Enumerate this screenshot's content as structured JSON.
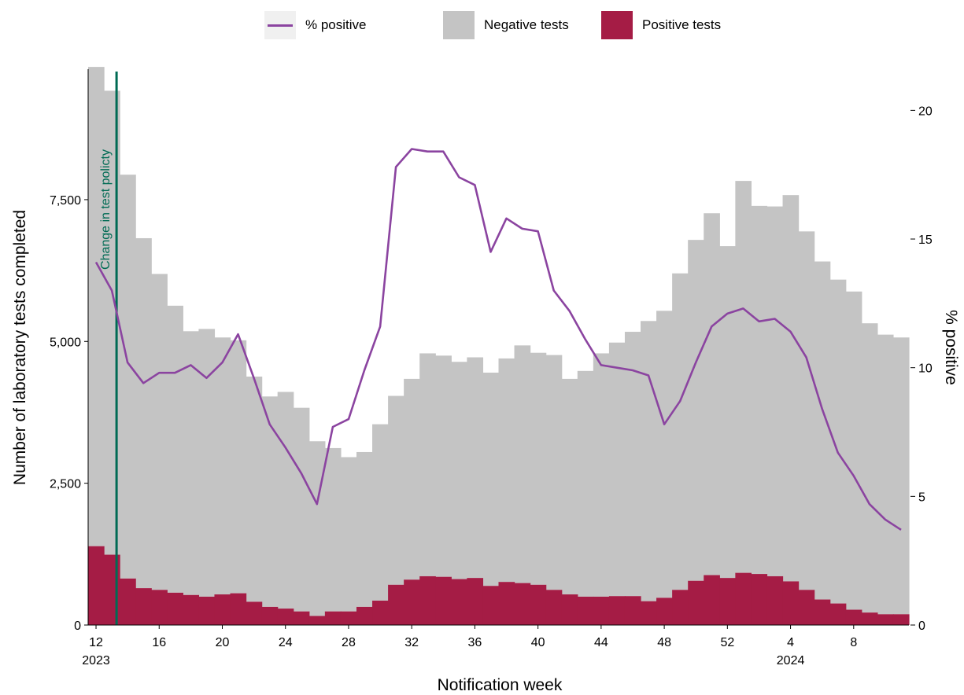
{
  "colors": {
    "negative": "#c4c4c4",
    "positive": "#a51c45",
    "pct_line": "#8b44a0",
    "policy_line": "#006b54",
    "axis": "#000000"
  },
  "legend": {
    "pct_label": "% positive",
    "negative_label": "Negative tests",
    "positive_label": "Positive tests"
  },
  "annotation": {
    "policy_label": "Change in test policty"
  },
  "chart_data": {
    "type": "bar",
    "xlabel": "Notification week",
    "ylabel": "Number of laboratory tests completed",
    "y2label": "% positive",
    "ylim": [
      0,
      9800
    ],
    "y2lim": [
      0,
      21.6
    ],
    "yticks": [
      {
        "value": 0,
        "label": "0"
      },
      {
        "value": 2500,
        "label": "2,500"
      },
      {
        "value": 5000,
        "label": "5,000"
      },
      {
        "value": 7500,
        "label": "7,500"
      }
    ],
    "y2ticks": [
      {
        "value": 0,
        "label": "0"
      },
      {
        "value": 5,
        "label": "5"
      },
      {
        "value": 10,
        "label": "10"
      },
      {
        "value": 15,
        "label": "15"
      },
      {
        "value": 20,
        "label": "20"
      }
    ],
    "xticks": [
      {
        "index": 0,
        "label": "12",
        "sublabel": "2023"
      },
      {
        "index": 4,
        "label": "16",
        "sublabel": ""
      },
      {
        "index": 8,
        "label": "20",
        "sublabel": ""
      },
      {
        "index": 12,
        "label": "24",
        "sublabel": ""
      },
      {
        "index": 16,
        "label": "28",
        "sublabel": ""
      },
      {
        "index": 20,
        "label": "32",
        "sublabel": ""
      },
      {
        "index": 24,
        "label": "36",
        "sublabel": ""
      },
      {
        "index": 28,
        "label": "40",
        "sublabel": ""
      },
      {
        "index": 32,
        "label": "44",
        "sublabel": ""
      },
      {
        "index": 36,
        "label": "48",
        "sublabel": ""
      },
      {
        "index": 40,
        "label": "52",
        "sublabel": ""
      },
      {
        "index": 44,
        "label": "4",
        "sublabel": "2024"
      },
      {
        "index": 48,
        "label": "8",
        "sublabel": ""
      }
    ],
    "policy_change_week_index": 1.8,
    "weeks": [
      "12",
      "13",
      "14",
      "15",
      "16",
      "17",
      "18",
      "19",
      "20",
      "21",
      "22",
      "23",
      "24",
      "25",
      "26",
      "27",
      "28",
      "29",
      "30",
      "31",
      "32",
      "33",
      "34",
      "35",
      "36",
      "37",
      "38",
      "39",
      "40",
      "41",
      "42",
      "43",
      "44",
      "45",
      "46",
      "47",
      "48",
      "49",
      "50",
      "51",
      "52",
      "1",
      "2",
      "3",
      "4",
      "5",
      "6",
      "7",
      "8",
      "9",
      "10",
      "11"
    ],
    "series": [
      {
        "name": "Negative tests",
        "values": [
          8450,
          8180,
          7120,
          6170,
          5570,
          5060,
          4650,
          4720,
          4530,
          4460,
          3970,
          3710,
          3820,
          3590,
          3080,
          2880,
          2720,
          2730,
          3110,
          3330,
          3540,
          3930,
          3900,
          3830,
          3890,
          3760,
          3940,
          4190,
          4090,
          4140,
          3800,
          3980,
          4290,
          4470,
          4660,
          4940,
          5060,
          5580,
          6010,
          6380,
          5850,
          6910,
          6490,
          6520,
          6810,
          6320,
          5960,
          5710,
          5610,
          5100,
          4930,
          4880
        ]
      },
      {
        "name": "Positive tests",
        "values": [
          1390,
          1240,
          820,
          650,
          620,
          570,
          530,
          500,
          540,
          560,
          410,
          320,
          290,
          240,
          160,
          240,
          240,
          320,
          430,
          710,
          800,
          860,
          850,
          810,
          830,
          690,
          760,
          740,
          710,
          620,
          540,
          500,
          500,
          510,
          510,
          420,
          480,
          620,
          780,
          880,
          830,
          920,
          900,
          860,
          770,
          620,
          450,
          380,
          270,
          220,
          190,
          190
        ]
      },
      {
        "name": "% positive",
        "values": [
          14.1,
          13.0,
          10.2,
          9.4,
          9.8,
          9.8,
          10.1,
          9.6,
          10.2,
          11.3,
          9.6,
          7.8,
          6.9,
          5.9,
          4.7,
          7.7,
          8.0,
          9.9,
          11.6,
          17.8,
          18.5,
          18.4,
          18.4,
          17.4,
          17.1,
          14.5,
          15.8,
          15.4,
          15.3,
          13.0,
          12.2,
          11.1,
          10.1,
          10.0,
          9.9,
          9.7,
          7.8,
          8.7,
          10.2,
          11.6,
          12.1,
          12.3,
          11.8,
          11.9,
          11.4,
          10.4,
          8.4,
          6.7,
          5.8,
          4.7,
          4.1,
          3.7
        ]
      }
    ]
  }
}
